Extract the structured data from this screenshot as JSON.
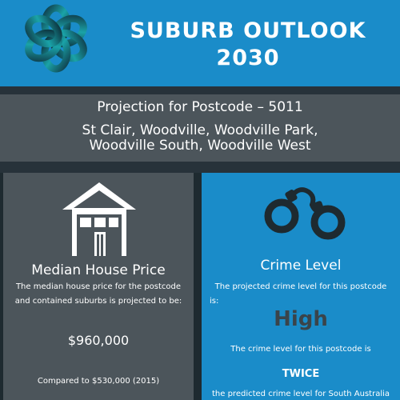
{
  "header": {
    "title_line1": "SUBURB OUTLOOK",
    "title_line2": "2030",
    "logo_icon": "knot-logo-icon"
  },
  "subheader": {
    "postcode": "Projection for Postcode – 5011",
    "suburbs_line1": "St Clair, Woodville, Woodville Park,",
    "suburbs_line2": "Woodville South, Woodville West"
  },
  "house_price": {
    "icon": "house-icon",
    "title": "Median House Price",
    "desc_line1": "The median house price for the postcode",
    "desc_line2": "and contained suburbs is projected to be:",
    "value": "$960,000",
    "compare": "Compared to $530,000 (2015)"
  },
  "crime": {
    "icon": "handcuffs-icon",
    "title": "Crime Level",
    "desc_line1": "The projected crime level for this postcode",
    "desc_line2": "is:",
    "level": "High",
    "compare_intro": "The crime level for this postcode is",
    "multiplier": "TWICE",
    "compare_outro": "the predicted crime level for South Australia"
  },
  "colors": {
    "blue": "#1a8cc9",
    "grey": "#4c555b",
    "dark": "#27323a"
  }
}
